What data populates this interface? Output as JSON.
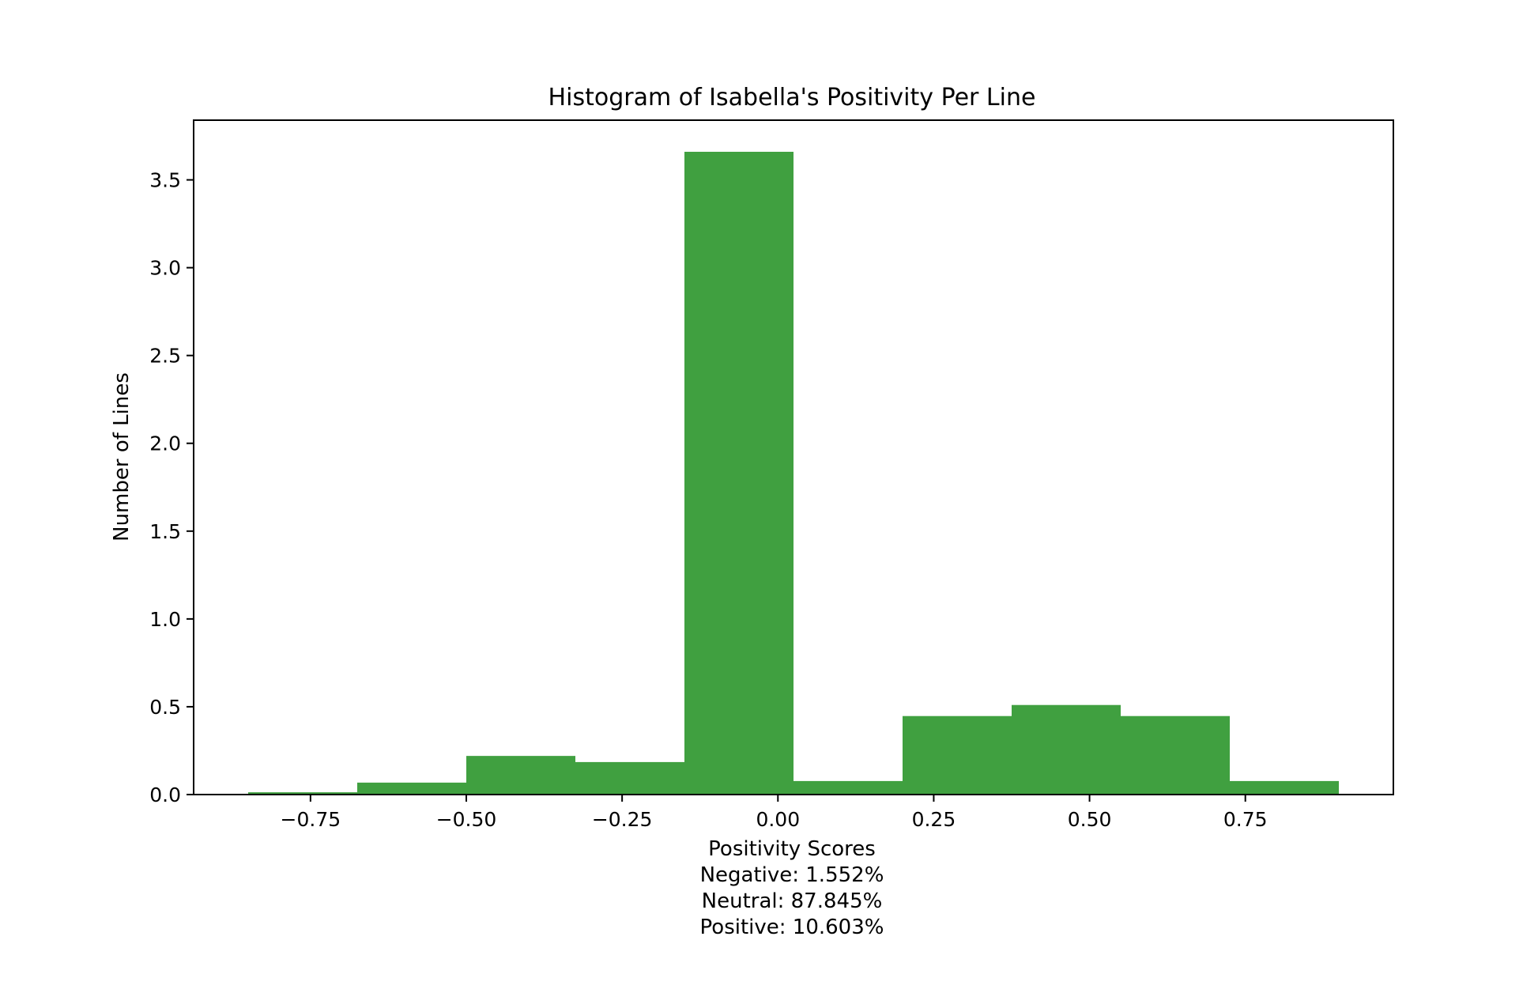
{
  "chart_data": {
    "type": "bar",
    "subtype": "histogram",
    "title": "Histogram of Isabella's Positivity Per Line",
    "xlabel": "Positivity Scores",
    "ylabel": "Number of Lines",
    "bar_color": "#40a040",
    "bins": [
      {
        "x0": -0.85,
        "x1": -0.675,
        "value": 0.013
      },
      {
        "x0": -0.675,
        "x1": -0.5,
        "value": 0.068
      },
      {
        "x0": -0.5,
        "x1": -0.325,
        "value": 0.22
      },
      {
        "x0": -0.325,
        "x1": -0.15,
        "value": 0.185
      },
      {
        "x0": -0.15,
        "x1": 0.025,
        "value": 3.66
      },
      {
        "x0": 0.025,
        "x1": 0.2,
        "value": 0.077
      },
      {
        "x0": 0.2,
        "x1": 0.375,
        "value": 0.447
      },
      {
        "x0": 0.375,
        "x1": 0.55,
        "value": 0.51
      },
      {
        "x0": 0.55,
        "x1": 0.725,
        "value": 0.447
      },
      {
        "x0": 0.725,
        "x1": 0.9,
        "value": 0.077
      }
    ],
    "xlim": [
      -0.9375,
      0.9875
    ],
    "ylim": [
      0,
      3.84
    ],
    "xticks": [
      -0.75,
      -0.5,
      -0.25,
      0.0,
      0.25,
      0.5,
      0.75
    ],
    "xtick_labels": [
      "−0.75",
      "−0.50",
      "−0.25",
      "0.00",
      "0.25",
      "0.50",
      "0.75"
    ],
    "yticks": [
      0.0,
      0.5,
      1.0,
      1.5,
      2.0,
      2.5,
      3.0,
      3.5
    ],
    "ytick_labels": [
      "0.0",
      "0.5",
      "1.0",
      "1.5",
      "2.0",
      "2.5",
      "3.0",
      "3.5"
    ],
    "summary": [
      "Negative: 1.552%",
      "Neutral: 87.845%",
      "Positive: 10.603%"
    ],
    "grid": false,
    "legend": "none"
  }
}
